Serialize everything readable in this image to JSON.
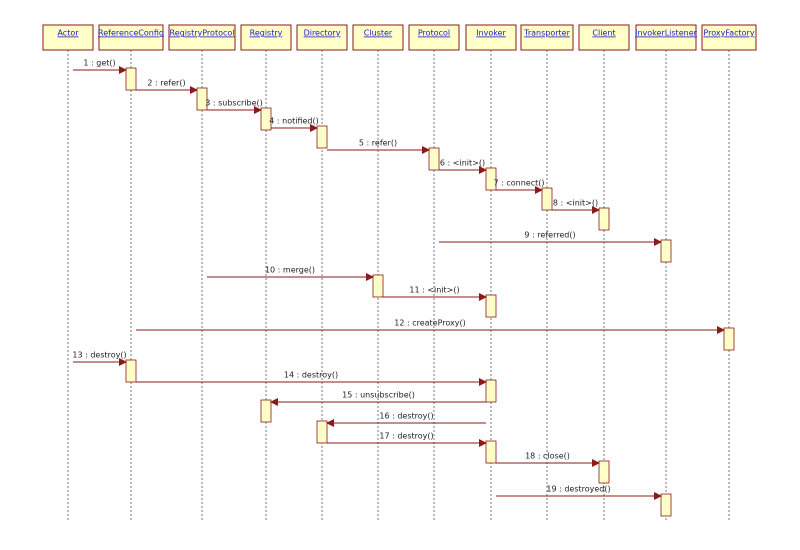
{
  "participants": [
    "Actor",
    "ReferenceConfig",
    "RegistryProtocol",
    "Registry",
    "Directory",
    "Cluster",
    "Protocol",
    "Invoker",
    "Transporter",
    "Client",
    "InvokerListener",
    "ProxyFactory"
  ],
  "messages": [
    "1 : get()",
    "2 : refer()",
    "3 : subscribe()",
    "4 : notified()",
    "5 : refer()",
    "6 : <init>()",
    "7 : connect()",
    "8 : <init>()",
    "9 : referred()",
    "10 : merge()",
    "11 : <init>()",
    "12 : createProxy()",
    "13 : destroy()",
    "14 : destroy()",
    "15 : unsubscribe()",
    "16 : destroy()",
    "17 : destroy()",
    "18 : close()",
    "19 : destroyed()"
  ]
}
